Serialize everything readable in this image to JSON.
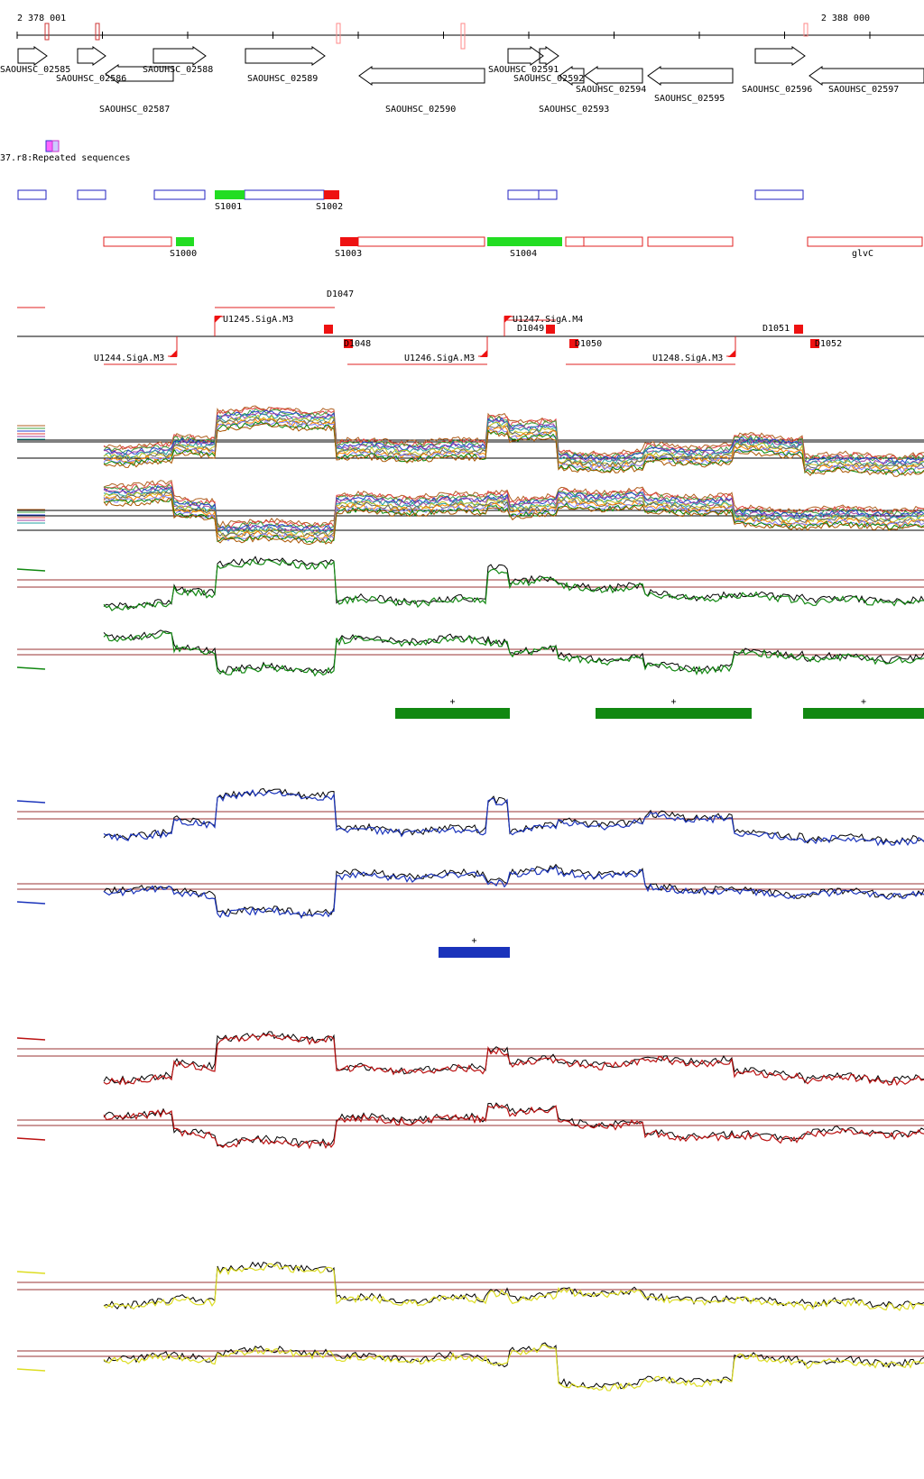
{
  "ruler": {
    "start_label": "2 378 001",
    "end_label": "2 388 000"
  },
  "genes": [
    {
      "name": "SAOUHSC_02585",
      "strand": "+"
    },
    {
      "name": "SAOUHSC_02586",
      "strand": "+"
    },
    {
      "name": "SAOUHSC_02587",
      "strand": "-"
    },
    {
      "name": "SAOUHSC_02588",
      "strand": "+"
    },
    {
      "name": "SAOUHSC_02589",
      "strand": "+"
    },
    {
      "name": "SAOUHSC_02590",
      "strand": "-"
    },
    {
      "name": "SAOUHSC_02591",
      "strand": "+"
    },
    {
      "name": "SAOUHSC_02592",
      "strand": "+"
    },
    {
      "name": "SAOUHSC_02593",
      "strand": "-"
    },
    {
      "name": "SAOUHSC_02594",
      "strand": "-"
    },
    {
      "name": "SAOUHSC_02595",
      "strand": "-"
    },
    {
      "name": "SAOUHSC_02596",
      "strand": "+"
    },
    {
      "name": "SAOUHSC_02597",
      "strand": "-"
    }
  ],
  "repeats_label": "37.r8:Repeated sequences",
  "segments_top": [
    "S1001",
    "S1002"
  ],
  "segments_bottom": [
    "S1000",
    "S1003",
    "S1004",
    "glvC"
  ],
  "tu_labels": [
    "U1245.SigA.M3",
    "U1247.SigA.M4",
    "U1244.SigA.M3",
    "U1246.SigA.M3",
    "U1248.SigA.M3"
  ],
  "break_labels": [
    "D1047",
    "D1048",
    "D1049",
    "D1050",
    "D1051",
    "D1052"
  ],
  "significance_marks": [
    "+",
    "+",
    "+",
    "+"
  ],
  "colors": {
    "gene_outline": "#000000",
    "blue_box": "#2020c0",
    "red_box": "#e02020",
    "green_fill": "#22dd22",
    "red_fill": "#ee1111",
    "panel_green": "#118811",
    "panel_blue": "#1a33bb",
    "panel_red": "#bb1111",
    "panel_yellow": "#dddd22",
    "threshold": "#993333"
  }
}
